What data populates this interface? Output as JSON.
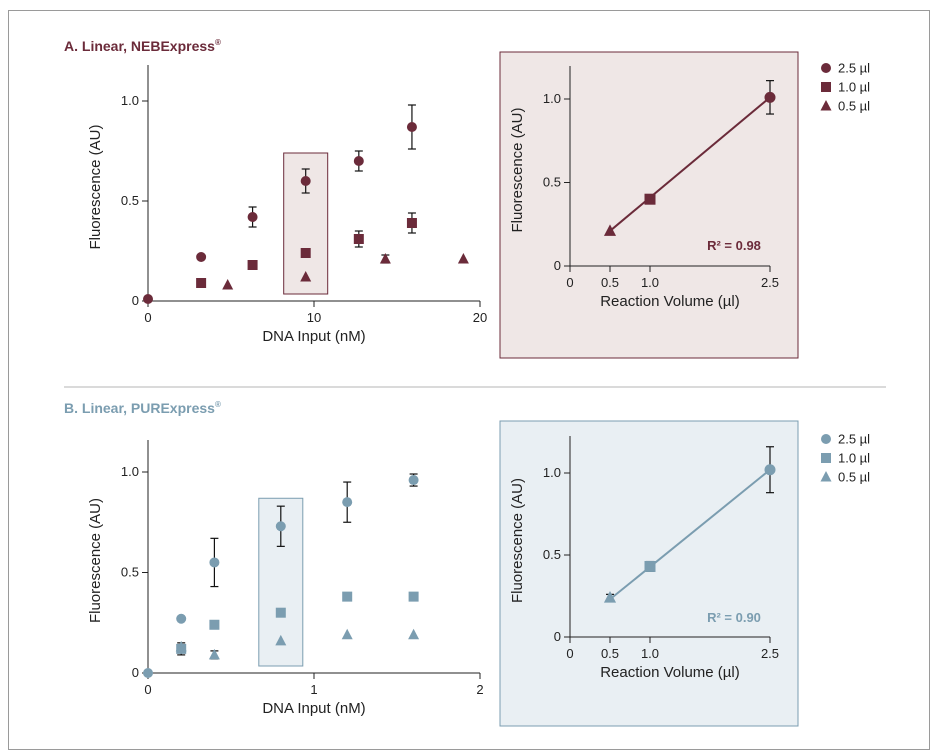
{
  "chart_data": [
    {
      "panel": "A",
      "title": "A. Linear, NEBExpress",
      "title_mark": "®",
      "color": "#6b2b3a",
      "box_fill": "#efe7e6",
      "main": {
        "type": "scatter",
        "xlabel": "DNA Input (nM)",
        "ylabel": "Fluorescence (AU)",
        "xlim": [
          0,
          20
        ],
        "ylim": [
          0,
          1.2
        ],
        "xticks": [
          {
            "v": 0,
            "label": "0"
          },
          {
            "v": 10,
            "label": "10"
          },
          {
            "v": 20,
            "label": "20"
          }
        ],
        "yticks": [
          {
            "v": 0,
            "label": "0"
          },
          {
            "v": 0.5,
            "label": "0.5"
          },
          {
            "v": 1.0,
            "label": "1.0"
          }
        ],
        "highlight_x": 9.5,
        "series": [
          {
            "name": "2.5 µl",
            "marker": "circle",
            "points": [
              {
                "x": 0,
                "y": 0.01
              },
              {
                "x": 3.2,
                "y": 0.22
              },
              {
                "x": 6.3,
                "y": 0.42,
                "err": 0.05
              },
              {
                "x": 9.5,
                "y": 0.6,
                "err": 0.06
              },
              {
                "x": 12.7,
                "y": 0.7,
                "err": 0.05
              },
              {
                "x": 15.9,
                "y": 0.87,
                "err": 0.11
              }
            ]
          },
          {
            "name": "1.0 µl",
            "marker": "square",
            "points": [
              {
                "x": 3.2,
                "y": 0.09
              },
              {
                "x": 6.3,
                "y": 0.18
              },
              {
                "x": 9.5,
                "y": 0.24
              },
              {
                "x": 12.7,
                "y": 0.31,
                "err": 0.04
              },
              {
                "x": 15.9,
                "y": 0.39,
                "err": 0.05
              }
            ]
          },
          {
            "name": "0.5 µl",
            "marker": "triangle",
            "points": [
              {
                "x": 4.8,
                "y": 0.08
              },
              {
                "x": 9.5,
                "y": 0.12
              },
              {
                "x": 14.3,
                "y": 0.21,
                "err": 0.02
              },
              {
                "x": 19.0,
                "y": 0.21
              }
            ]
          }
        ]
      },
      "inset": {
        "type": "scatter",
        "xlabel": "Reaction Volume (µl)",
        "ylabel": "Fluorescence (AU)",
        "xlim": [
          0,
          2.5
        ],
        "ylim": [
          0,
          1.2
        ],
        "xticks": [
          {
            "v": 0,
            "label": "0"
          },
          {
            "v": 0.5,
            "label": "0.5"
          },
          {
            "v": 1.0,
            "label": "1.0"
          },
          {
            "v": 2.5,
            "label": "2.5"
          }
        ],
        "yticks": [
          {
            "v": 0,
            "label": "0"
          },
          {
            "v": 0.5,
            "label": "0.5"
          },
          {
            "v": 1.0,
            "label": "1.0"
          }
        ],
        "points": [
          {
            "x": 0.5,
            "y": 0.21,
            "marker": "triangle"
          },
          {
            "x": 1.0,
            "y": 0.4,
            "marker": "square"
          },
          {
            "x": 2.5,
            "y": 1.01,
            "marker": "circle",
            "err": 0.1
          }
        ],
        "fit": {
          "x": [
            0.5,
            2.5
          ],
          "y": [
            0.21,
            1.01
          ]
        },
        "r2_label": "R² = 0.98"
      },
      "legend": [
        {
          "marker": "circle",
          "label": "2.5 µl"
        },
        {
          "marker": "square",
          "label": "1.0 µl"
        },
        {
          "marker": "triangle",
          "label": "0.5 µl"
        }
      ]
    },
    {
      "panel": "B",
      "title": "B. Linear, PURExpress",
      "title_mark": "®",
      "color": "#7b9db0",
      "box_fill": "#e9eff3",
      "main": {
        "type": "scatter",
        "xlabel": "DNA Input (nM)",
        "ylabel": "Fluorescence (AU)",
        "xlim": [
          0,
          2
        ],
        "ylim": [
          0,
          1.15
        ],
        "xticks": [
          {
            "v": 0,
            "label": "0"
          },
          {
            "v": 1,
            "label": "1"
          },
          {
            "v": 2,
            "label": "2"
          }
        ],
        "yticks": [
          {
            "v": 0,
            "label": "0"
          },
          {
            "v": 0.5,
            "label": "0.5"
          },
          {
            "v": 1.0,
            "label": "1.0"
          }
        ],
        "highlight_x": 0.8,
        "series": [
          {
            "name": "2.5 µl",
            "marker": "circle",
            "points": [
              {
                "x": 0,
                "y": 0.0
              },
              {
                "x": 0.2,
                "y": 0.27
              },
              {
                "x": 0.4,
                "y": 0.55,
                "err": 0.12
              },
              {
                "x": 0.8,
                "y": 0.73,
                "err": 0.1
              },
              {
                "x": 1.2,
                "y": 0.85,
                "err": 0.1
              },
              {
                "x": 1.6,
                "y": 0.96,
                "err": 0.03
              }
            ]
          },
          {
            "name": "1.0 µl",
            "marker": "square",
            "points": [
              {
                "x": 0.2,
                "y": 0.12,
                "err": 0.03
              },
              {
                "x": 0.4,
                "y": 0.24
              },
              {
                "x": 0.8,
                "y": 0.3,
                "err": 0.02
              },
              {
                "x": 1.2,
                "y": 0.38,
                "err": 0.02
              },
              {
                "x": 1.6,
                "y": 0.38
              }
            ]
          },
          {
            "name": "0.5 µl",
            "marker": "triangle",
            "points": [
              {
                "x": 0.2,
                "y": 0.13
              },
              {
                "x": 0.4,
                "y": 0.09,
                "err": 0.02
              },
              {
                "x": 0.8,
                "y": 0.16
              },
              {
                "x": 1.2,
                "y": 0.19
              },
              {
                "x": 1.6,
                "y": 0.19
              }
            ]
          }
        ]
      },
      "inset": {
        "type": "scatter",
        "xlabel": "Reaction Volume (µl)",
        "ylabel": "Fluorescence (AU)",
        "xlim": [
          0,
          2.5
        ],
        "ylim": [
          0,
          1.25
        ],
        "xticks": [
          {
            "v": 0,
            "label": "0"
          },
          {
            "v": 0.5,
            "label": "0.5"
          },
          {
            "v": 1.0,
            "label": "1.0"
          },
          {
            "v": 2.5,
            "label": "2.5"
          }
        ],
        "yticks": [
          {
            "v": 0,
            "label": "0"
          },
          {
            "v": 0.5,
            "label": "0.5"
          },
          {
            "v": 1.0,
            "label": "1.0"
          }
        ],
        "points": [
          {
            "x": 0.5,
            "y": 0.24,
            "marker": "triangle",
            "err": 0.02
          },
          {
            "x": 1.0,
            "y": 0.43,
            "marker": "square",
            "err": 0.03
          },
          {
            "x": 2.5,
            "y": 1.02,
            "marker": "circle",
            "err": 0.14
          }
        ],
        "fit": {
          "x": [
            0.5,
            2.5
          ],
          "y": [
            0.23,
            1.02
          ]
        },
        "r2_label": "R² = 0.90"
      },
      "legend": [
        {
          "marker": "circle",
          "label": "2.5 µl"
        },
        {
          "marker": "square",
          "label": "1.0 µl"
        },
        {
          "marker": "triangle",
          "label": "0.5 µl"
        }
      ]
    }
  ]
}
